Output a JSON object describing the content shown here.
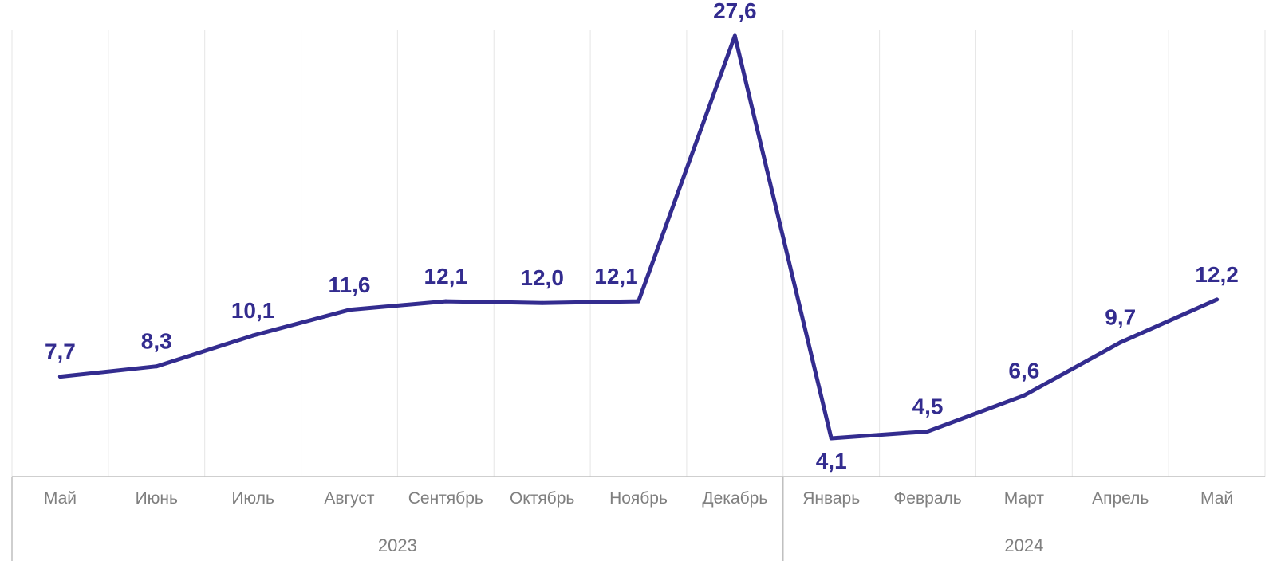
{
  "chart_data": {
    "type": "line",
    "title": "",
    "xlabel": "",
    "ylabel": "",
    "categories": [
      "Май",
      "Июнь",
      "Июль",
      "Август",
      "Сентябрь",
      "Октябрь",
      "Ноябрь",
      "Декабрь",
      "Январь",
      "Февраль",
      "Март",
      "Апрель",
      "Май"
    ],
    "groups": [
      {
        "label": "2023",
        "start": 0,
        "count": 8
      },
      {
        "label": "2024",
        "start": 8,
        "count": 5
      }
    ],
    "series": [
      {
        "values": [
          7.7,
          8.3,
          10.1,
          11.6,
          12.1,
          12.0,
          12.1,
          27.6,
          4.1,
          4.5,
          6.6,
          9.7,
          12.2
        ],
        "data_labels": [
          "7,7",
          "8,3",
          "10,1",
          "11,6",
          "12,1",
          "12,0",
          "12,1",
          "27,6",
          "4,1",
          "4,5",
          "6,6",
          "9,7",
          "12,2"
        ]
      }
    ],
    "line_color": "#332c8f",
    "label_color": "#332c8f",
    "grid": true,
    "gridlines": "vertical",
    "legend": "none"
  }
}
